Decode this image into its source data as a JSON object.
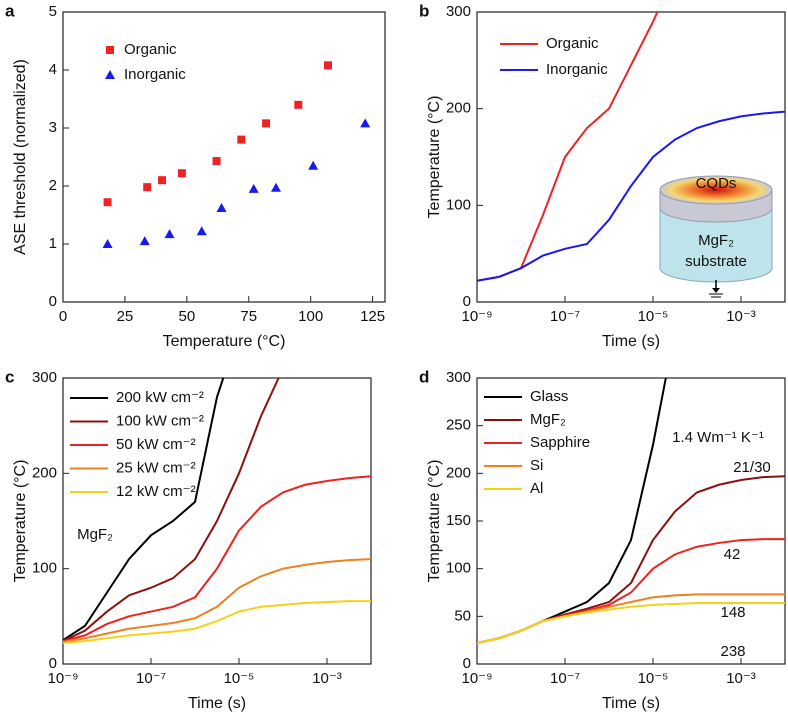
{
  "chart_data": [
    {
      "type": "scatter",
      "panel": "a",
      "xlabel": "Temperature (°C)",
      "ylabel": "ASE threshold (normalized)",
      "xlim": [
        0,
        130
      ],
      "xticks": [
        0,
        25,
        50,
        75,
        100,
        125
      ],
      "ylim": [
        0,
        5
      ],
      "yticks": [
        0,
        1,
        2,
        3,
        4,
        5
      ],
      "series": [
        {
          "name": "Organic",
          "color": "#ee2222",
          "marker": "square",
          "x": [
            18,
            34,
            40,
            48,
            62,
            72,
            82,
            95,
            107
          ],
          "values": [
            1.72,
            1.98,
            2.1,
            2.22,
            2.43,
            2.8,
            3.08,
            3.4,
            4.08
          ]
        },
        {
          "name": "Inorganic",
          "color": "#1a1aee",
          "marker": "triangle",
          "x": [
            18,
            33,
            43,
            56,
            64,
            77,
            86,
            101,
            122
          ],
          "values": [
            1.0,
            1.05,
            1.17,
            1.22,
            1.62,
            1.95,
            1.97,
            2.35,
            3.08
          ]
        }
      ]
    },
    {
      "type": "line",
      "panel": "b",
      "xlabel": "Time (s)",
      "ylabel": "Temperature (°C)",
      "xscale": "log",
      "xlim": [
        1e-09,
        0.01
      ],
      "xticks": [
        {
          "value": 1e-09,
          "label": "10⁻⁹"
        },
        {
          "value": 1e-07,
          "label": "10⁻⁷"
        },
        {
          "value": 1e-05,
          "label": "10⁻⁵"
        },
        {
          "value": 0.001,
          "label": "10⁻³"
        }
      ],
      "ylim": [
        0,
        300
      ],
      "yticks": [
        0,
        100,
        200,
        300
      ],
      "x": [
        1e-09,
        3.16e-09,
        1e-08,
        3.16e-08,
        1e-07,
        3.16e-07,
        1e-06,
        3.16e-06,
        1e-05,
        3.16e-05,
        0.0001,
        0.000316,
        0.001,
        0.00316,
        0.01
      ],
      "series": [
        {
          "name": "Organic",
          "color": "#ee2222",
          "values": [
            22,
            26,
            35,
            90,
            150,
            180,
            200,
            245,
            290,
            340,
            null,
            null,
            null,
            null,
            null
          ]
        },
        {
          "name": "Inorganic",
          "color": "#1a1aee",
          "values": [
            22,
            26,
            35,
            48,
            55,
            60,
            85,
            120,
            150,
            168,
            180,
            187,
            192,
            195,
            197
          ]
        }
      ],
      "annotations": [
        "CQDs",
        "MgF₂",
        "substrate"
      ]
    },
    {
      "type": "line",
      "panel": "c",
      "xlabel": "Time (s)",
      "ylabel": "Temperature (°C)",
      "xscale": "log",
      "xlim": [
        1e-09,
        0.01
      ],
      "xticks": [
        {
          "value": 1e-09,
          "label": "10⁻⁹"
        },
        {
          "value": 1e-07,
          "label": "10⁻⁷"
        },
        {
          "value": 1e-05,
          "label": "10⁻⁵"
        },
        {
          "value": 0.001,
          "label": "10⁻³"
        }
      ],
      "ylim": [
        0,
        300
      ],
      "yticks": [
        0,
        100,
        200,
        300
      ],
      "x": [
        1e-09,
        3.16e-09,
        1e-08,
        3.16e-08,
        1e-07,
        3.16e-07,
        1e-06,
        3.16e-06,
        1e-05,
        3.16e-05,
        0.0001,
        0.000316,
        0.001,
        0.00316,
        0.01
      ],
      "series": [
        {
          "name": "200 kW cm⁻²",
          "color": "#000000",
          "values": [
            25,
            40,
            75,
            110,
            135,
            150,
            170,
            280,
            350,
            null,
            null,
            null,
            null,
            null,
            null
          ]
        },
        {
          "name": "100 kW cm⁻²",
          "color": "#8b1010",
          "values": [
            24,
            35,
            55,
            72,
            80,
            90,
            110,
            150,
            200,
            260,
            310,
            null,
            null,
            null,
            null
          ]
        },
        {
          "name": "50 kW cm⁻²",
          "color": "#ee2222",
          "values": [
            24,
            30,
            42,
            50,
            55,
            60,
            70,
            100,
            140,
            165,
            180,
            188,
            192,
            195,
            197
          ]
        },
        {
          "name": "25 kW cm⁻²",
          "color": "#f08020",
          "values": [
            23,
            27,
            32,
            37,
            40,
            43,
            48,
            60,
            80,
            92,
            100,
            104,
            107,
            109,
            110
          ]
        },
        {
          "name": "12 kW cm⁻²",
          "color": "#f5d21a",
          "values": [
            22,
            24,
            27,
            30,
            32,
            34,
            37,
            45,
            55,
            60,
            62,
            64,
            65,
            66,
            66
          ]
        }
      ],
      "annotations": [
        "MgF₂"
      ]
    },
    {
      "type": "line",
      "panel": "d",
      "xlabel": "Time (s)",
      "ylabel": "Temperature (°C)",
      "xscale": "log",
      "xlim": [
        1e-09,
        0.01
      ],
      "xticks": [
        {
          "value": 1e-09,
          "label": "10⁻⁹"
        },
        {
          "value": 1e-07,
          "label": "10⁻⁷"
        },
        {
          "value": 1e-05,
          "label": "10⁻⁵"
        },
        {
          "value": 0.001,
          "label": "10⁻³"
        }
      ],
      "ylim": [
        0,
        300
      ],
      "yticks": [
        0,
        50,
        100,
        150,
        200,
        250,
        300
      ],
      "x": [
        1e-09,
        3.16e-09,
        1e-08,
        3.16e-08,
        1e-07,
        3.16e-07,
        1e-06,
        3.16e-06,
        1e-05,
        3.16e-05,
        0.0001,
        0.000316,
        0.001,
        0.00316,
        0.01
      ],
      "series": [
        {
          "name": "Glass",
          "color": "#000000",
          "values": [
            22,
            27,
            35,
            45,
            55,
            65,
            85,
            130,
            230,
            350,
            null,
            null,
            null,
            null,
            null
          ]
        },
        {
          "name": "MgF₂",
          "color": "#8b1010",
          "values": [
            22,
            27,
            35,
            45,
            52,
            58,
            65,
            85,
            130,
            160,
            180,
            188,
            193,
            196,
            197
          ]
        },
        {
          "name": "Sapphire",
          "color": "#ee2222",
          "values": [
            22,
            27,
            35,
            45,
            51,
            56,
            62,
            75,
            100,
            115,
            123,
            127,
            130,
            131,
            131
          ]
        },
        {
          "name": "Si",
          "color": "#f08020",
          "values": [
            22,
            27,
            35,
            45,
            50,
            55,
            60,
            65,
            70,
            72,
            73,
            73,
            73,
            73,
            73
          ]
        },
        {
          "name": "Al",
          "color": "#f5d21a",
          "values": [
            22,
            27,
            35,
            45,
            50,
            54,
            57,
            60,
            62,
            63,
            64,
            64,
            64,
            64,
            64
          ]
        }
      ],
      "annotations": [
        "1.4 Wm⁻¹ K⁻¹",
        "21/30",
        "42",
        "148",
        "238"
      ]
    }
  ]
}
